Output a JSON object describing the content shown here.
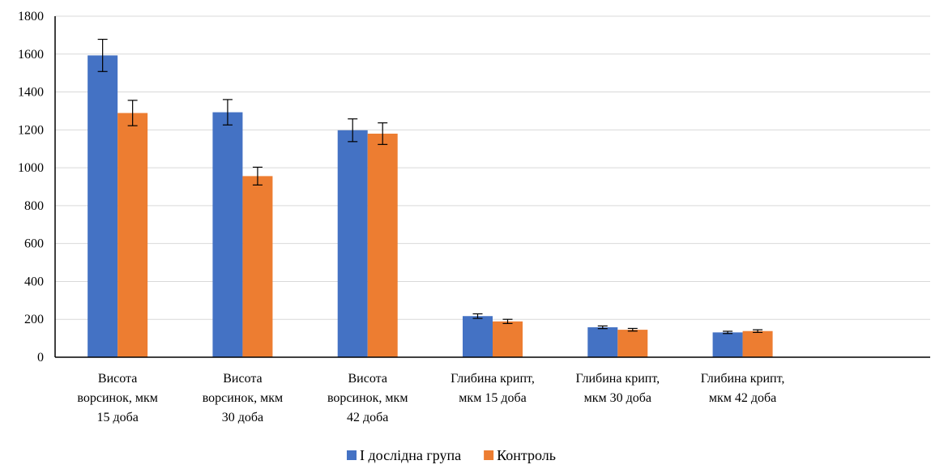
{
  "chart_data": {
    "type": "bar",
    "title": "",
    "xlabel": "",
    "ylabel": "",
    "ylim": [
      0,
      1800
    ],
    "yticks": [
      0,
      200,
      400,
      600,
      800,
      1000,
      1200,
      1400,
      1600,
      1800
    ],
    "grid": true,
    "legend_position": "bottom",
    "categories": [
      [
        "Висота",
        "ворсинок, мкм",
        "15 доба"
      ],
      [
        "Висота",
        "ворсинок, мкм",
        "30 доба"
      ],
      [
        "Висота",
        "ворсинок, мкм",
        "42 доба"
      ],
      [
        "Глибина крипт,",
        "мкм 15 доба"
      ],
      [
        "Глибина крипт,",
        "мкм 30 доба"
      ],
      [
        "Глибина крипт,",
        "мкм  42 доба"
      ]
    ],
    "series": [
      {
        "name": "І дослідна група",
        "color": "#4472c4",
        "values": [
          1593,
          1293,
          1198,
          217,
          158,
          131
        ],
        "errors": [
          85,
          67,
          60,
          12,
          7,
          6
        ]
      },
      {
        "name": "Контроль",
        "color": "#ed7d31",
        "values": [
          1289,
          956,
          1180,
          189,
          145,
          138
        ],
        "errors": [
          67,
          47,
          57,
          11,
          7,
          7
        ]
      }
    ]
  }
}
